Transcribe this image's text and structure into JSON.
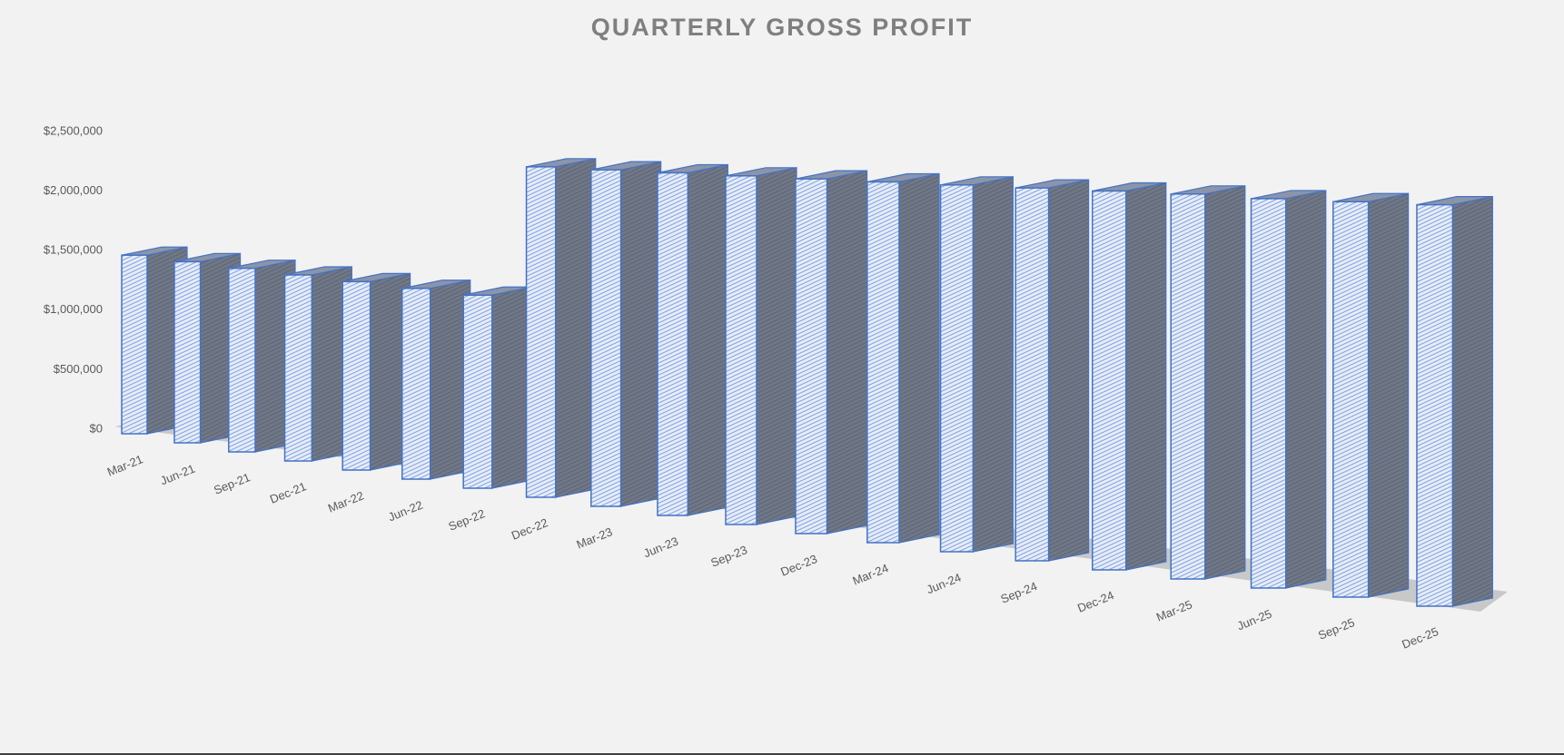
{
  "chart_data": {
    "type": "bar3d",
    "title": "QUARTERLY GROSS PROFIT",
    "categories": [
      "Mar-21",
      "Jun-21",
      "Sep-21",
      "Dec-21",
      "Mar-22",
      "Jun-22",
      "Sep-22",
      "Dec-22",
      "Mar-23",
      "Jun-23",
      "Sep-23",
      "Dec-23",
      "Mar-24",
      "Jun-24",
      "Sep-24",
      "Dec-24",
      "Mar-25",
      "Jun-25",
      "Sep-25",
      "Dec-25"
    ],
    "values": [
      1500000,
      1490000,
      1480000,
      1470000,
      1460000,
      1450000,
      1440000,
      2420000,
      2420000,
      2420000,
      2420000,
      2420000,
      2420000,
      2420000,
      2420000,
      2420000,
      2420000,
      2410000,
      2410000,
      2410000
    ],
    "color": "#4472c4",
    "ylim": [
      0,
      2500000
    ],
    "yticks": [
      {
        "value": 0,
        "label": "$0"
      },
      {
        "value": 500000,
        "label": "$500,000"
      },
      {
        "value": 1000000,
        "label": "$1,000,000"
      },
      {
        "value": 1500000,
        "label": "$1,500,000"
      },
      {
        "value": 2000000,
        "label": "$2,000,000"
      },
      {
        "value": 2500000,
        "label": "$2,500,000"
      }
    ],
    "grid": false
  }
}
